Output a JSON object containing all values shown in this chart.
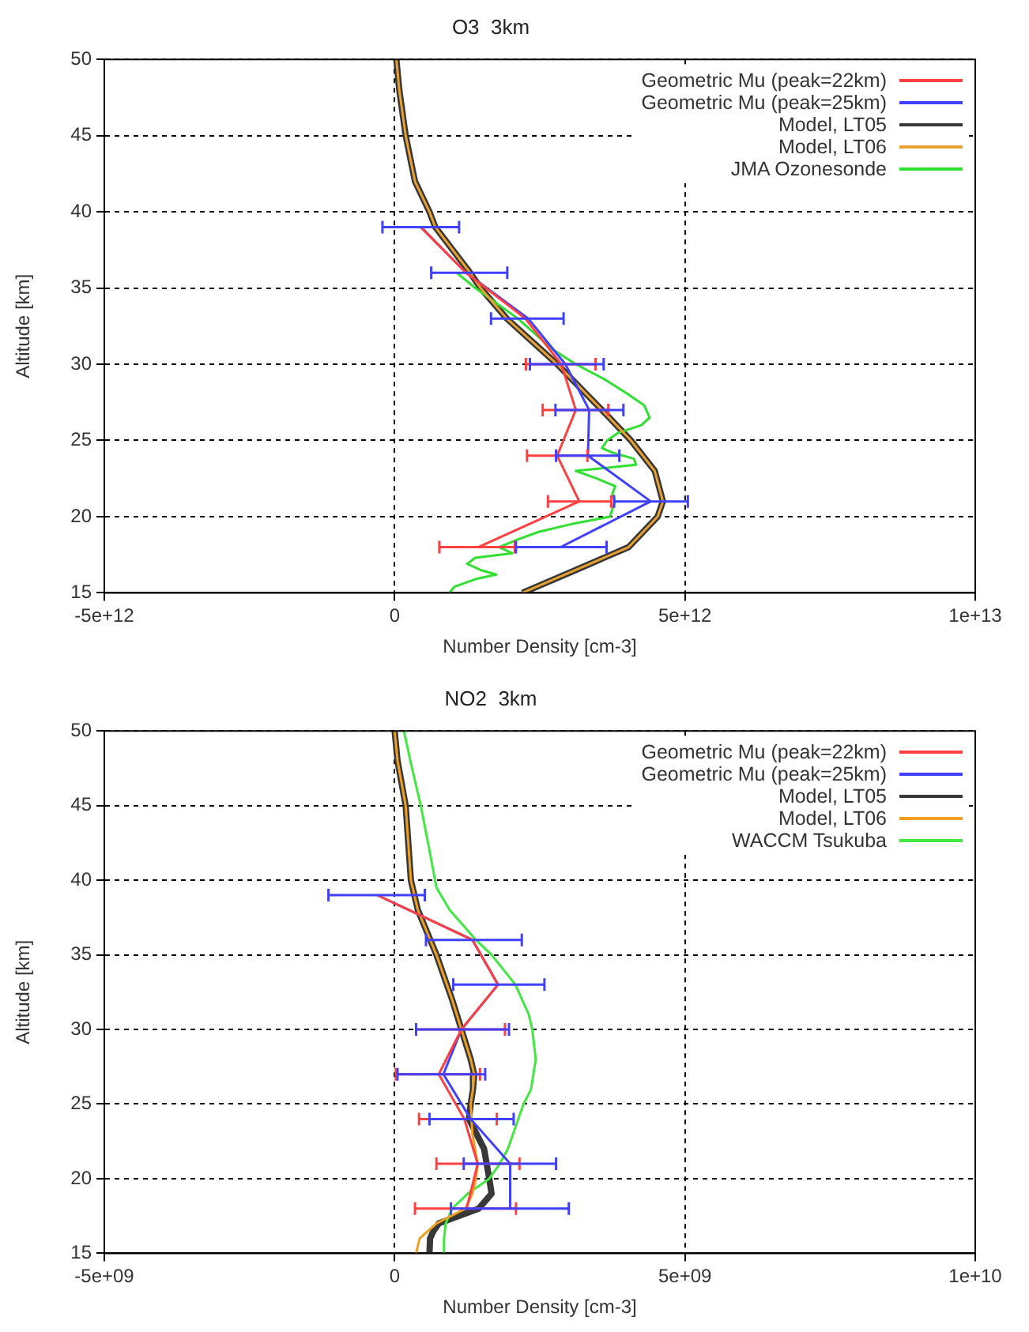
{
  "chart_data": [
    {
      "type": "line",
      "title": "O3  3km",
      "xlabel": "Number Density [cm-3]",
      "ylabel": "Altitude [km]",
      "xlim": [
        -5000000000000.0,
        10000000000000.0
      ],
      "xticks": [
        {
          "value": -5000000000000.0,
          "label": "-5e+12"
        },
        0,
        {
          "value": 5000000000000.0,
          "label": "5e+12"
        },
        {
          "value": 10000000000000.0,
          "label": "1e+13"
        }
      ],
      "ylim": [
        15,
        50
      ],
      "yticks": [
        15,
        20,
        25,
        30,
        35,
        40,
        45,
        50
      ],
      "grid": true,
      "legend": "top right",
      "series": [
        {
          "name": "Geometric Mu (peak=22km)",
          "color": "#ff4040",
          "x": [
            450000000000.0,
            1230000000000.0,
            2250000000000.0,
            2870000000000.0,
            3120000000000.0,
            2800000000000.0,
            3180000000000.0,
            1440000000000.0
          ],
          "values": [
            39,
            36,
            33,
            30,
            27,
            24,
            21,
            18
          ],
          "xerrors": [
            null,
            null,
            null,
            [
              2260000000000.0,
              3460000000000.0
            ],
            [
              2550000000000.0,
              3680000000000.0
            ],
            [
              2280000000000.0,
              3320000000000.0
            ],
            [
              2640000000000.0,
              3730000000000.0
            ],
            [
              770000000000.0,
              2070000000000.0
            ]
          ]
        },
        {
          "name": "Geometric Mu (peak=25km)",
          "color": "#4040ff",
          "x": [
            450000000000.0,
            1230000000000.0,
            2300000000000.0,
            2940000000000.0,
            3350000000000.0,
            3330000000000.0,
            4410000000000.0,
            2860000000000.0
          ],
          "values": [
            39,
            36,
            33,
            30,
            27,
            24,
            21,
            18
          ],
          "xerrors": [
            [
              -210000000000.0,
              1110000000000.0
            ],
            [
              630000000000.0,
              1940000000000.0
            ],
            [
              1660000000000.0,
              2910000000000.0
            ],
            [
              2330000000000.0,
              3600000000000.0
            ],
            [
              2770000000000.0,
              3940000000000.0
            ],
            [
              2780000000000.0,
              3870000000000.0
            ],
            [
              3780000000000.0,
              5050000000000.0
            ],
            [
              2090000000000.0,
              3650000000000.0
            ]
          ]
        },
        {
          "name": "Model, LT05",
          "color": "#383838",
          "x": [
            30000000000.0,
            80000000000.0,
            190000000000.0,
            350000000000.0,
            600000000000.0,
            700000000000.0,
            1300000000000.0,
            1480000000000.0,
            1930000000000.0,
            2800000000000.0,
            3570000000000.0,
            4070000000000.0,
            4480000000000.0,
            4620000000000.0,
            4530000000000.0,
            4030000000000.0,
            3120000000000.0,
            2200000000000.0
          ],
          "values": [
            50,
            48,
            45,
            42,
            40,
            39,
            36,
            35,
            33,
            30,
            27,
            25,
            23,
            21,
            20,
            18,
            16.5,
            15
          ]
        },
        {
          "name": "Model, LT06",
          "color": "#e8a030",
          "x": [
            30000000000.0,
            80000000000.0,
            190000000000.0,
            350000000000.0,
            600000000000.0,
            700000000000.0,
            1300000000000.0,
            1480000000000.0,
            1930000000000.0,
            2800000000000.0,
            3570000000000.0,
            4070000000000.0,
            4480000000000.0,
            4620000000000.0,
            4530000000000.0,
            4030000000000.0,
            3120000000000.0,
            2200000000000.0
          ],
          "values": [
            50,
            48,
            45,
            42,
            40,
            39,
            36,
            35,
            33,
            30,
            27,
            25,
            23,
            21,
            20,
            18,
            16.5,
            15
          ]
        },
        {
          "name": "JMA Ozonesonde",
          "color": "#30e030",
          "x": [
            1070000000000.0,
            1390000000000.0,
            2120000000000.0,
            2710000000000.0,
            3120000000000.0,
            3620000000000.0,
            4030000000000.0,
            4300000000000.0,
            4390000000000.0,
            4250000000000.0,
            3850000000000.0,
            3660000000000.0,
            3570000000000.0,
            3750000000000.0,
            4120000000000.0,
            4160000000000.0,
            3120000000000.0,
            3480000000000.0,
            3800000000000.0,
            3750000000000.0,
            3800000000000.0,
            3750000000000.0,
            3710000000000.0,
            3030000000000.0,
            2480000000000.0,
            2120000000000.0,
            1800000000000.0,
            2030000000000.0,
            1390000000000.0,
            1250000000000.0,
            1480000000000.0,
            1750000000000.0,
            1390000000000.0,
            1030000000000.0,
            940000000000.0
          ],
          "values": [
            36,
            35,
            33,
            31,
            30,
            29,
            28,
            27.3,
            26.5,
            26,
            25.5,
            25,
            24.5,
            24.2,
            23.8,
            23.4,
            23,
            22.5,
            22,
            21.5,
            21,
            20.5,
            20,
            19.5,
            19,
            18.5,
            18,
            17.6,
            17.3,
            16.9,
            16.5,
            16.2,
            15.9,
            15.4,
            15
          ]
        }
      ]
    },
    {
      "type": "line",
      "title": "NO2  3km",
      "xlabel": "Number Density [cm-3]",
      "ylabel": "Altitude [km]",
      "xlim": [
        -5000000000.0,
        10000000000.0
      ],
      "xticks": [
        {
          "value": -5000000000.0,
          "label": "-5e+09"
        },
        0,
        {
          "value": 5000000000.0,
          "label": "5e+09"
        },
        {
          "value": 10000000000.0,
          "label": "1e+10"
        }
      ],
      "ylim": [
        15,
        50
      ],
      "yticks": [
        15,
        20,
        25,
        30,
        35,
        40,
        45,
        50
      ],
      "grid": true,
      "legend": "top right",
      "series": [
        {
          "name": "Geometric Mu (peak=22km)",
          "color": "#ff4040",
          "x": [
            -300000000.0,
            1340000000.0,
            1780000000.0,
            1150000000.0,
            760000000.0,
            1200000000.0,
            1430000000.0,
            1240000000.0
          ],
          "values": [
            39,
            36,
            33,
            30,
            27,
            24,
            21,
            18
          ],
          "xerrors": [
            null,
            null,
            null,
            [
              370000000.0,
              1900000000.0
            ],
            [
              20000000.0,
              1470000000.0
            ],
            [
              420000000.0,
              1760000000.0
            ],
            [
              720000000.0,
              2150000000.0
            ],
            [
              350000000.0,
              2090000000.0
            ]
          ]
        },
        {
          "name": "Geometric Mu (peak=25km)",
          "color": "#4040ff",
          "x": [
            -300000000.0,
            1340000000.0,
            1780000000.0,
            1150000000.0,
            840000000.0,
            1310000000.0,
            1990000000.0,
            1990000000.0
          ],
          "values": [
            39,
            36,
            33,
            30,
            27,
            24,
            21,
            18
          ],
          "xerrors": [
            [
              -1140000000.0,
              520000000.0
            ],
            [
              540000000.0,
              2190000000.0
            ],
            [
              1010000000.0,
              2580000000.0
            ],
            [
              370000000.0,
              1970000000.0
            ],
            [
              50000000.0,
              1560000000.0
            ],
            [
              600000000.0,
              2050000000.0
            ],
            [
              1190000000.0,
              2780000000.0
            ],
            [
              970000000.0,
              3000000000.0
            ]
          ]
        },
        {
          "name": "Model, LT05",
          "color": "#383838",
          "x": [
            0,
            50000000.0,
            190000000.0,
            280000000.0,
            400000000.0,
            720000000.0,
            990000000.0,
            1150000000.0,
            1310000000.0,
            1370000000.0,
            1350000000.0,
            1310000000.0,
            1280000000.0,
            1540000000.0,
            1630000000.0,
            1670000000.0,
            1450000000.0,
            760000000.0,
            670000000.0,
            610000000.0,
            600000000.0
          ],
          "values": [
            50,
            48,
            45,
            40,
            38,
            35,
            32,
            30,
            28,
            27,
            26,
            25,
            24,
            22,
            20,
            19,
            18,
            17,
            16.5,
            16,
            15
          ]
        },
        {
          "name": "Model, LT06",
          "color": "#f0a020",
          "x": [
            0,
            50000000.0,
            190000000.0,
            280000000.0,
            400000000.0,
            720000000.0,
            990000000.0,
            1150000000.0,
            1310000000.0,
            1370000000.0,
            1350000000.0,
            1310000000.0,
            1340000000.0,
            1430000000.0,
            1400000000.0,
            1340000000.0,
            1220000000.0,
            720000000.0,
            430000000.0,
            370000000.0
          ],
          "values": [
            50,
            48,
            45,
            40,
            38,
            35,
            32,
            30,
            28,
            27,
            26,
            25,
            23,
            21,
            20,
            19,
            18,
            17,
            16,
            15
          ]
        },
        {
          "name": "WACCM Tsukuba",
          "color": "#40e840",
          "x": [
            160000000.0,
            270000000.0,
            450000000.0,
            600000000.0,
            720000000.0,
            950000000.0,
            1400000000.0,
            1670000000.0,
            2080000000.0,
            2310000000.0,
            2370000000.0,
            2430000000.0,
            2350000000.0,
            2220000000.0,
            2130000000.0,
            1950000000.0,
            1810000000.0,
            1630000000.0,
            1260000000.0,
            990000000.0,
            880000000.0,
            850000000.0,
            850000000.0
          ],
          "values": [
            50,
            48,
            45,
            42,
            39.5,
            38,
            36,
            35,
            33,
            31,
            30,
            28,
            26,
            25,
            24,
            22,
            21,
            20,
            19,
            18,
            17,
            16,
            15
          ]
        }
      ]
    }
  ]
}
